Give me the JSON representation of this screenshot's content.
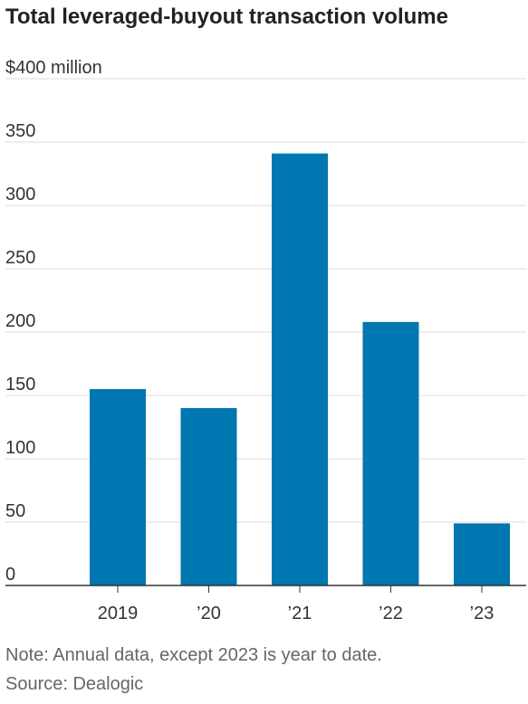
{
  "chart_data": {
    "type": "bar",
    "title": "Total leveraged-buyout transaction volume",
    "ylabel_unit": "$400 million",
    "categories": [
      "2019",
      "’20",
      "’21",
      "’22",
      "’23"
    ],
    "values": [
      155,
      140,
      341,
      208,
      49
    ],
    "ylim": [
      0,
      400
    ],
    "yticks": [
      0,
      50,
      100,
      150,
      200,
      250,
      300,
      350,
      400
    ],
    "ytick_labels": [
      "0",
      "50",
      "100",
      "150",
      "200",
      "250",
      "300",
      "350",
      "$400 million"
    ],
    "bar_color": "#0077b0",
    "grid": true,
    "legend": "none"
  },
  "footnotes": {
    "note": "Note: Annual data, except 2023 is year to date.",
    "source": "Source: Dealogic"
  }
}
